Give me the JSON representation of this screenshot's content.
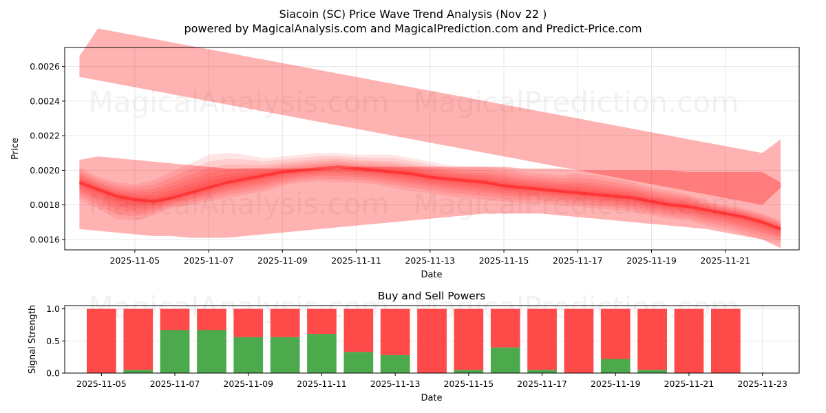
{
  "chart_data": [
    {
      "type": "area",
      "title": "Siacoin (SC) Price Wave Trend Analysis (Nov 22 )",
      "subtitle": "powered by MagicalAnalysis.com and MagicalPrediction.com and Predict-Price.com",
      "xlabel": "Date",
      "ylabel": "Price",
      "xlim": [
        -1.9,
        18.0
      ],
      "ylim": [
        0.00154,
        0.00271
      ],
      "x_tick_labels": [
        "2025-11-05",
        "2025-11-07",
        "2025-11-09",
        "2025-11-11",
        "2025-11-13",
        "2025-11-15",
        "2025-11-17",
        "2025-11-19",
        "2025-11-21"
      ],
      "y_ticks": [
        0.0016,
        0.0018,
        0.002,
        0.0022,
        0.0024,
        0.0026
      ],
      "y_tick_labels": [
        "0.0016",
        "0.0018",
        "0.0020",
        "0.0022",
        "0.0024",
        "0.0026"
      ],
      "grid": true,
      "x": [
        -1.5,
        -1.0,
        -0.5,
        0.0,
        0.5,
        1.0,
        1.5,
        2.0,
        2.5,
        3.0,
        3.5,
        4.0,
        4.5,
        5.0,
        5.5,
        6.0,
        6.5,
        7.0,
        7.5,
        8.0,
        8.5,
        9.0,
        9.5,
        10.0,
        10.5,
        11.0,
        11.5,
        12.0,
        12.5,
        13.0,
        13.5,
        14.0,
        14.5,
        15.0,
        15.5,
        16.0,
        16.5,
        17.0,
        17.5
      ],
      "series": [
        {
          "name": "upper trend band",
          "upper": [
            0.00266,
            0.00282,
            0.0028,
            0.00278,
            0.00276,
            0.00274,
            0.00272,
            0.0027,
            0.00268,
            0.00266,
            0.00264,
            0.00262,
            0.0026,
            0.00258,
            0.00256,
            0.00254,
            0.00252,
            0.0025,
            0.00248,
            0.00246,
            0.00244,
            0.00242,
            0.0024,
            0.00238,
            0.00236,
            0.00234,
            0.00232,
            0.0023,
            0.00228,
            0.00226,
            0.00224,
            0.00222,
            0.0022,
            0.00218,
            0.00216,
            0.00214,
            0.00212,
            0.0021,
            0.00218
          ],
          "lower": [
            0.00254,
            0.00252,
            0.0025,
            0.00248,
            0.00246,
            0.00244,
            0.00242,
            0.0024,
            0.00238,
            0.00236,
            0.00234,
            0.00232,
            0.0023,
            0.00228,
            0.00226,
            0.00224,
            0.00222,
            0.0022,
            0.00218,
            0.00216,
            0.00214,
            0.00212,
            0.0021,
            0.00208,
            0.00206,
            0.00204,
            0.00202,
            0.002,
            0.00198,
            0.00196,
            0.00194,
            0.00192,
            0.0019,
            0.00188,
            0.00186,
            0.00184,
            0.00182,
            0.0018,
            0.0019
          ]
        },
        {
          "name": "wide channel",
          "upper": [
            0.00206,
            0.00208,
            0.00207,
            0.00206,
            0.00205,
            0.00204,
            0.00203,
            0.00202,
            0.00201,
            0.00201,
            0.00201,
            0.00201,
            0.00201,
            0.00201,
            0.00201,
            0.00202,
            0.00202,
            0.00202,
            0.00202,
            0.00202,
            0.00202,
            0.00202,
            0.00202,
            0.00202,
            0.00201,
            0.00201,
            0.00201,
            0.002,
            0.002,
            0.002,
            0.002,
            0.002,
            0.002,
            0.00199,
            0.00199,
            0.00199,
            0.00199,
            0.00199,
            0.00193
          ],
          "lower": [
            0.00166,
            0.00165,
            0.00164,
            0.00163,
            0.00162,
            0.00162,
            0.00161,
            0.00161,
            0.00161,
            0.00162,
            0.00163,
            0.00164,
            0.00165,
            0.00166,
            0.00167,
            0.00168,
            0.00169,
            0.0017,
            0.00171,
            0.00172,
            0.00173,
            0.00174,
            0.00175,
            0.00175,
            0.00175,
            0.00175,
            0.00174,
            0.00173,
            0.00172,
            0.00171,
            0.0017,
            0.00169,
            0.00168,
            0.00167,
            0.00166,
            0.00164,
            0.00162,
            0.0016,
            0.00155
          ]
        },
        {
          "name": "price wave upper",
          "values": [
            0.00202,
            0.00196,
            0.00193,
            0.00192,
            0.00194,
            0.00199,
            0.00204,
            0.00209,
            0.0021,
            0.00209,
            0.00207,
            0.00208,
            0.00209,
            0.0021,
            0.0021,
            0.00209,
            0.00209,
            0.00209,
            0.00207,
            0.00205,
            0.00203,
            0.00202,
            0.00202,
            0.00201,
            0.00199,
            0.00198,
            0.00197,
            0.00198,
            0.00197,
            0.00195,
            0.00193,
            0.0019,
            0.00188,
            0.00186,
            0.00182,
            0.0018,
            0.00178,
            0.00175,
            0.00171
          ]
        },
        {
          "name": "price wave mean",
          "values": [
            0.00193,
            0.00189,
            0.00185,
            0.00183,
            0.00182,
            0.00184,
            0.00187,
            0.0019,
            0.00193,
            0.00195,
            0.00197,
            0.00199,
            0.002,
            0.00201,
            0.00202,
            0.00201,
            0.002,
            0.00199,
            0.00198,
            0.00196,
            0.00195,
            0.00194,
            0.00193,
            0.00191,
            0.0019,
            0.00189,
            0.00188,
            0.00187,
            0.00186,
            0.00185,
            0.00184,
            0.00182,
            0.0018,
            0.00179,
            0.00177,
            0.00175,
            0.00173,
            0.0017,
            0.00166
          ]
        },
        {
          "name": "price wave lower",
          "values": [
            0.00183,
            0.00178,
            0.00172,
            0.00171,
            0.00174,
            0.00178,
            0.0018,
            0.00182,
            0.00184,
            0.00186,
            0.00188,
            0.00191,
            0.00193,
            0.00194,
            0.00193,
            0.00193,
            0.00192,
            0.0019,
            0.00188,
            0.00187,
            0.00185,
            0.00184,
            0.00183,
            0.00182,
            0.00181,
            0.00181,
            0.0018,
            0.00179,
            0.00178,
            0.00177,
            0.00176,
            0.00174,
            0.00172,
            0.00171,
            0.00168,
            0.00166,
            0.00163,
            0.0016,
            0.00158
          ]
        }
      ],
      "watermarks": [
        "MagicalAnalysis.com",
        "MagicalPrediction.com",
        "MagicalAnalysis.com",
        "MagicalPrediction.com"
      ],
      "colors": {
        "band": "#ff0000",
        "grid": "#e6e6e6",
        "spine": "#000000",
        "watermark": "#cccccc"
      }
    },
    {
      "type": "bar",
      "stacked": true,
      "title": "Buy and Sell Powers",
      "xlabel": "Date",
      "ylabel": "Signal Strength",
      "xlim": [
        -2.0,
        18.0
      ],
      "ylim": [
        0,
        1.05
      ],
      "x_tick_labels": [
        "2025-11-05",
        "2025-11-07",
        "2025-11-09",
        "2025-11-11",
        "2025-11-13",
        "2025-11-15",
        "2025-11-17",
        "2025-11-19",
        "2025-11-21",
        "2025-11-23"
      ],
      "y_ticks": [
        0.0,
        0.5,
        1.0
      ],
      "y_tick_labels": [
        "0.0",
        "0.5",
        "1.0"
      ],
      "grid": true,
      "x": [
        -1,
        0,
        1,
        2,
        3,
        4,
        5,
        6,
        7,
        8,
        9,
        10,
        11,
        12,
        13,
        14,
        15,
        16
      ],
      "series": [
        {
          "name": "Buy",
          "color": "#4caa4c",
          "values": [
            0.0,
            0.05,
            0.67,
            0.67,
            0.56,
            0.56,
            0.61,
            0.33,
            0.28,
            0.0,
            0.05,
            0.4,
            0.05,
            0.0,
            0.22,
            0.05,
            0.0,
            0.0
          ]
        },
        {
          "name": "Sell",
          "color": "#ff4a4a",
          "values": [
            1.0,
            0.95,
            0.33,
            0.33,
            0.44,
            0.44,
            0.39,
            0.67,
            0.72,
            1.0,
            0.95,
            0.6,
            0.95,
            1.0,
            0.78,
            0.95,
            1.0,
            1.0
          ]
        }
      ],
      "watermarks": [
        "MagicalAnalysis.com",
        "MagicalPrediction.com"
      ]
    }
  ]
}
